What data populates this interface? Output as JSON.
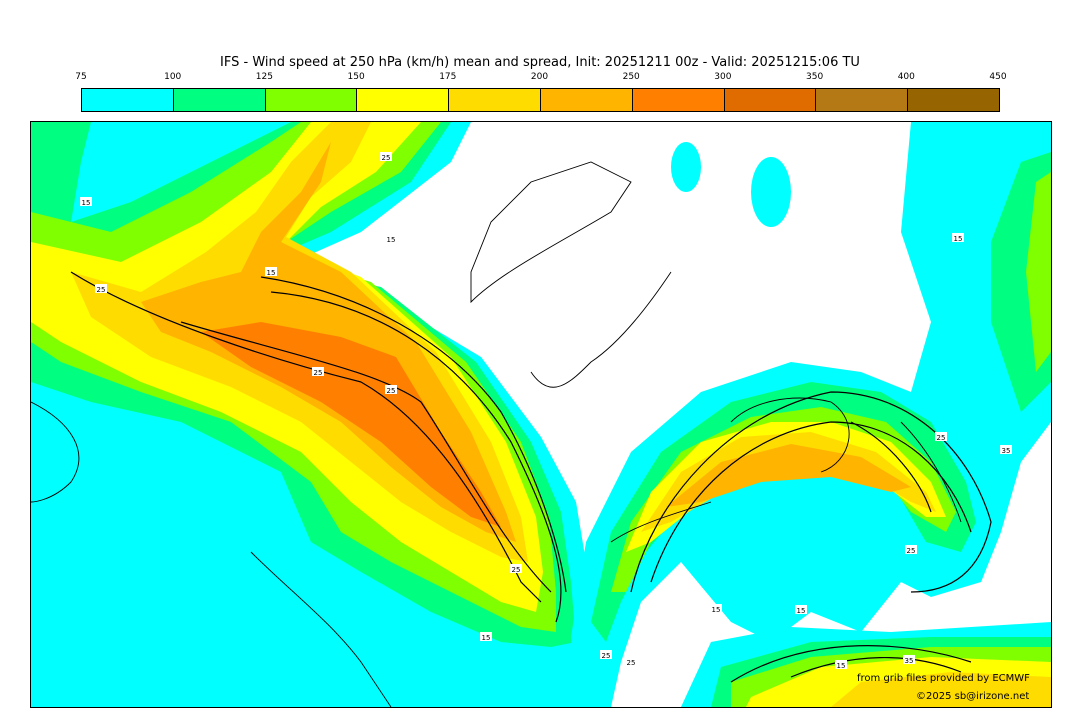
{
  "title": "IFS - Wind speed at 250 hPa (km/h) mean and spread, Init: 20251211 00z - Valid: 20251215:06 TU",
  "colorbar": {
    "ticks": [
      "75",
      "100",
      "125",
      "150",
      "175",
      "200",
      "250",
      "300",
      "350",
      "400",
      "450"
    ],
    "colors": [
      "#00ffff",
      "#00ff80",
      "#80ff00",
      "#ffff00",
      "#ffdc00",
      "#ffb400",
      "#ff8000",
      "#e06c00",
      "#b47814",
      "#966400"
    ]
  },
  "contour_labels": [
    "25",
    "15",
    "25",
    "15",
    "15",
    "25",
    "25",
    "25",
    "15",
    "25",
    "25",
    "15",
    "15",
    "15",
    "35",
    "25",
    "25",
    "35",
    "15"
  ],
  "credits": {
    "source": "from grib files provided by ECMWF",
    "copyright": "©2025 sb@irizone.net"
  }
}
